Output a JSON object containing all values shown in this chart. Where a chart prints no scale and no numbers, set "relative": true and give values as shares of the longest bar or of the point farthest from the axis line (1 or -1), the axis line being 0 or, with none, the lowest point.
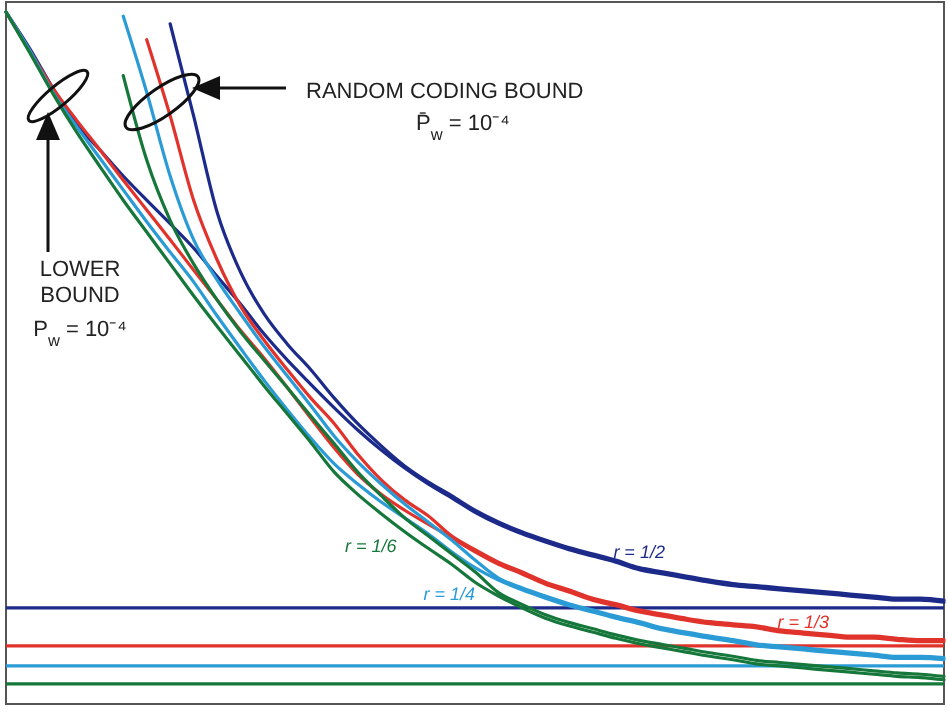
{
  "chart_data": {
    "type": "line",
    "relative": true,
    "categories": [
      null,
      null,
      null,
      null,
      null,
      null,
      null,
      null,
      null,
      null,
      null,
      null,
      null,
      null,
      null,
      null,
      null,
      null,
      null,
      null,
      null,
      null,
      null,
      null,
      null,
      null,
      null,
      null,
      null,
      null,
      null,
      null,
      null,
      null,
      null,
      null,
      null,
      null,
      null,
      null,
      null
    ],
    "series": [
      {
        "name": "r = 1/2",
        "color": "#1c2a8a",
        "values": [
          1.0,
          0.948,
          0.89,
          0.838,
          0.801,
          0.763,
          0.728,
          0.694,
          0.659,
          0.618,
          0.578,
          0.535,
          0.497,
          0.462,
          0.428,
          0.396,
          0.367,
          0.341,
          0.318,
          0.298,
          0.277,
          0.26,
          0.246,
          0.234,
          0.223,
          0.214,
          0.205,
          0.194,
          0.188,
          0.182,
          0.176,
          0.171,
          0.168,
          0.165,
          0.162,
          0.159,
          0.156,
          0.153,
          0.15,
          0.15,
          0.147
        ]
      },
      {
        "name": "r = 1/3",
        "color": "#e0332b",
        "values": [
          1.0,
          0.945,
          0.89,
          0.844,
          0.801,
          0.757,
          0.714,
          0.671,
          0.627,
          0.584,
          0.54,
          0.5,
          0.457,
          0.413,
          0.37,
          0.332,
          0.303,
          0.28,
          0.26,
          0.24,
          0.22,
          0.202,
          0.188,
          0.173,
          0.162,
          0.15,
          0.142,
          0.133,
          0.127,
          0.121,
          0.116,
          0.113,
          0.11,
          0.104,
          0.101,
          0.098,
          0.095,
          0.095,
          0.092,
          0.09,
          0.09
        ]
      },
      {
        "name": "r = 1/4",
        "color": "#2b9bd6",
        "values": [
          1.0,
          0.945,
          0.884,
          0.835,
          0.789,
          0.743,
          0.697,
          0.653,
          0.61,
          0.561,
          0.514,
          0.468,
          0.425,
          0.384,
          0.347,
          0.318,
          0.292,
          0.269,
          0.246,
          0.22,
          0.197,
          0.179,
          0.165,
          0.153,
          0.142,
          0.133,
          0.124,
          0.116,
          0.107,
          0.101,
          0.095,
          0.09,
          0.084,
          0.081,
          0.078,
          0.075,
          0.072,
          0.069,
          0.066,
          0.066,
          0.064
        ]
      },
      {
        "name": "r = 1/6",
        "color": "#16773a",
        "values": [
          1.0,
          0.942,
          0.882,
          0.827,
          0.777,
          0.728,
          0.682,
          0.636,
          0.59,
          0.546,
          0.503,
          0.46,
          0.419,
          0.378,
          0.335,
          0.303,
          0.275,
          0.249,
          0.225,
          0.202,
          0.176,
          0.156,
          0.139,
          0.124,
          0.113,
          0.104,
          0.095,
          0.087,
          0.081,
          0.075,
          0.069,
          0.064,
          0.058,
          0.055,
          0.052,
          0.049,
          0.046,
          0.043,
          0.04,
          0.038,
          0.035
        ]
      },
      {
        "color": "#1c2a8a",
        "values": [
          null,
          null,
          null,
          null,
          null,
          null,
          null,
          0.983,
          0.85,
          0.711,
          0.624,
          0.564,
          0.52,
          0.483,
          0.442,
          0.405,
          0.373,
          0.344,
          0.321,
          0.301,
          0.28,
          0.263,
          0.249,
          0.237,
          0.226,
          0.217,
          0.208,
          0.197,
          0.191,
          0.185,
          0.179,
          0.174,
          0.171,
          0.168,
          0.165,
          0.162,
          0.159,
          0.156,
          0.153,
          0.153,
          0.15
        ]
      },
      {
        "color": "#e0332b",
        "values": [
          null,
          null,
          null,
          null,
          null,
          null,
          0.96,
          0.85,
          0.728,
          0.642,
          0.575,
          0.526,
          0.483,
          0.442,
          0.405,
          0.361,
          0.324,
          0.295,
          0.272,
          0.243,
          0.223,
          0.205,
          0.191,
          0.176,
          0.165,
          0.153,
          0.145,
          0.136,
          0.13,
          0.124,
          0.119,
          0.116,
          0.113,
          0.107,
          0.104,
          0.101,
          0.098,
          0.098,
          0.095,
          0.093,
          0.093
        ]
      },
      {
        "color": "#2b9bd6",
        "values": [
          null,
          null,
          null,
          null,
          null,
          0.994,
          0.884,
          0.763,
          0.671,
          0.613,
          0.564,
          0.517,
          0.474,
          0.431,
          0.387,
          0.35,
          0.318,
          0.289,
          0.263,
          0.237,
          0.208,
          0.182,
          0.168,
          0.156,
          0.145,
          0.136,
          0.127,
          0.119,
          0.11,
          0.104,
          0.098,
          0.093,
          0.087,
          0.084,
          0.081,
          0.078,
          0.075,
          0.072,
          0.069,
          0.069,
          0.067
        ]
      },
      {
        "color": "#16773a",
        "values": [
          null,
          null,
          null,
          null,
          null,
          0.908,
          0.786,
          0.699,
          0.636,
          0.584,
          0.538,
          0.497,
          0.457,
          0.416,
          0.376,
          0.335,
          0.301,
          0.269,
          0.243,
          0.217,
          0.191,
          0.161,
          0.144,
          0.129,
          0.118,
          0.109,
          0.1,
          0.092,
          0.086,
          0.08,
          0.074,
          0.069,
          0.063,
          0.06,
          0.057,
          0.054,
          0.051,
          0.048,
          0.045,
          0.043,
          0.04
        ]
      }
    ],
    "ref_lines": [
      {
        "axis": "y",
        "value": 0.139,
        "color": "#1c2a8a"
      },
      {
        "axis": "y",
        "value": 0.084,
        "color": "#e0332b"
      },
      {
        "axis": "y",
        "value": 0.055,
        "color": "#2b9bd6"
      },
      {
        "axis": "y",
        "value": 0.029,
        "color": "#16773a"
      }
    ],
    "annotations": [
      "RANDOM CODING BOUND",
      "P̄$_{w}$ = 10⁻⁴",
      "LOWER BOUND",
      "P$_{w}$ = 10⁻⁴"
    ]
  }
}
